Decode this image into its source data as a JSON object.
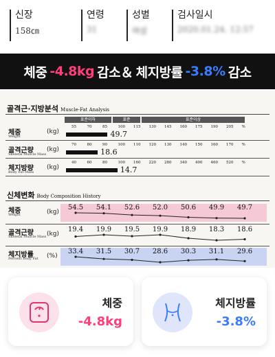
{
  "info": {
    "height_label": "신장",
    "height_value": "158㎝",
    "age_label": "연령",
    "age_value": "31",
    "sex_label": "성별",
    "sex_value": "여성",
    "date_label": "검사일시",
    "date_value": "2020.01.24. 12:57"
  },
  "headline": {
    "weight_label": "체중",
    "weight_change": "-4.8kg",
    "reduce_connector": "감소＆",
    "fat_label": "체지방률",
    "fat_change": "-3.8%",
    "reduce_suffix": "감소"
  },
  "muscle_fat": {
    "title_ko": "골격근·지방분석",
    "title_en": "Muscle-Fat Analysis",
    "bands": [
      "표준이하",
      "표준",
      "표준이상"
    ],
    "rows": [
      {
        "label_ko": "체중",
        "label_en": "Weight",
        "unit": "(kg)",
        "ticks": [
          "55",
          "70",
          "85",
          "100",
          "115",
          "130",
          "145",
          "160",
          "175",
          "190",
          "205",
          "%"
        ],
        "value": "49.7",
        "level_fraction": 0.42
      },
      {
        "label_ko": "골격근량",
        "label_en": "Skeletal Muscle Mass",
        "unit": "(kg)",
        "ticks": [
          "70",
          "80",
          "90",
          "100",
          "110",
          "120",
          "130",
          "140",
          "150",
          "160",
          "170",
          "%"
        ],
        "value": "18.6",
        "level_fraction": 0.32
      },
      {
        "label_ko": "체지방량",
        "label_en": "Body Fat Mass",
        "unit": "(kg)",
        "ticks": [
          "40",
          "60",
          "80",
          "100",
          "160",
          "220",
          "280",
          "340",
          "400",
          "460",
          "520",
          "%"
        ],
        "value": "14.7",
        "level_fraction": 0.52
      }
    ]
  },
  "history": {
    "title_ko": "신체변화",
    "title_en": "Body Composition History",
    "rows": [
      {
        "label_ko": "체중",
        "label_en": "Weight",
        "unit": "(kg)",
        "values": [
          "54.5",
          "54.1",
          "52.6",
          "52.0",
          "50.6",
          "49.9",
          "49.7"
        ],
        "color": "#f6c9d6"
      },
      {
        "label_ko": "골격근량",
        "label_en": "Skeletal Muscle Mass",
        "unit": "(kg)",
        "values": [
          "19.4",
          "19.9",
          "19.5",
          "19.9",
          "18.9",
          "18.3",
          "18.6"
        ],
        "color": "#f7f6f2"
      },
      {
        "label_ko": "체지방률",
        "label_en": "Percent Body Fat",
        "unit": "(%)",
        "values": [
          "33.4",
          "31.5",
          "30.7",
          "28.6",
          "30.3",
          "31.1",
          "29.6"
        ],
        "color": "#c9d4f2"
      }
    ]
  },
  "cards": {
    "weight": {
      "title": "체중",
      "value": "-4.8kg",
      "color": "#ff3e7a",
      "icon": "scale-icon"
    },
    "fat": {
      "title": "체지방률",
      "value": "-3.8%",
      "color": "#3b7cff",
      "icon": "waist-icon"
    }
  }
}
